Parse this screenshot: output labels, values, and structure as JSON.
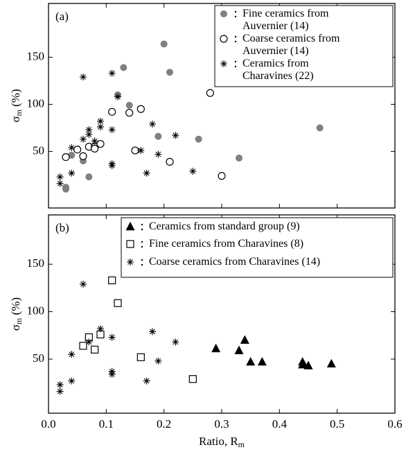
{
  "chart_data": [
    {
      "type": "scatter",
      "panel_label": "(a)",
      "ylabel": [
        "σ",
        "m",
        " (%)"
      ],
      "xlim": [
        0,
        0.6
      ],
      "xticks": [
        0,
        0.1,
        0.2,
        0.3,
        0.4,
        0.5,
        0.6
      ],
      "ylim": [
        -10,
        207
      ],
      "yticks": [
        50,
        100,
        150
      ],
      "series": [
        {
          "name": "Fine ceramics from Auvernier (14)",
          "marker": "circle-filled",
          "color": "#808080",
          "x": [
            0.03,
            0.03,
            0.04,
            0.06,
            0.07,
            0.12,
            0.13,
            0.14,
            0.19,
            0.2,
            0.21,
            0.26,
            0.33,
            0.47
          ],
          "values": [
            12,
            10,
            46,
            40,
            23,
            110,
            139,
            99,
            66,
            164,
            134,
            63,
            43,
            75
          ]
        },
        {
          "name": "Coarse ceramics from Auvernier (14)",
          "marker": "circle-open",
          "color": "#000000",
          "x": [
            0.03,
            0.05,
            0.06,
            0.07,
            0.08,
            0.08,
            0.09,
            0.11,
            0.14,
            0.16,
            0.15,
            0.21,
            0.28,
            0.3
          ],
          "values": [
            44,
            52,
            45,
            55,
            55,
            53,
            58,
            92,
            91,
            95,
            51,
            39,
            112,
            24
          ]
        },
        {
          "name": "Ceramics from Charavines (22)",
          "marker": "star",
          "color": "#000000",
          "x": [
            0.02,
            0.02,
            0.04,
            0.04,
            0.06,
            0.06,
            0.07,
            0.07,
            0.08,
            0.09,
            0.09,
            0.11,
            0.11,
            0.11,
            0.11,
            0.12,
            0.16,
            0.17,
            0.18,
            0.19,
            0.22,
            0.25
          ],
          "values": [
            23,
            16,
            27,
            54,
            129,
            63,
            73,
            68,
            61,
            82,
            76,
            133,
            73,
            37,
            35,
            108,
            51,
            27,
            79,
            47,
            67,
            29
          ]
        }
      ]
    },
    {
      "type": "scatter",
      "panel_label": "(b)",
      "ylabel": [
        "σ",
        "m",
        " (%)"
      ],
      "xlabel": [
        "Ratio, R",
        "m"
      ],
      "xlim": [
        0,
        0.6
      ],
      "xticks": [
        {
          "value": 0,
          "label": "0.0"
        },
        0.1,
        0.2,
        0.3,
        0.4,
        0.5,
        0.6
      ],
      "ylim": [
        -7,
        202
      ],
      "yticks": [
        50,
        100,
        150
      ],
      "series": [
        {
          "name": "Ceramics from standard group (9)",
          "marker": "triangle",
          "color": "#000000",
          "x": [
            0.29,
            0.33,
            0.34,
            0.35,
            0.37,
            0.44,
            0.44,
            0.45,
            0.49
          ],
          "values": [
            61,
            59,
            70,
            47,
            47,
            47,
            44,
            43,
            45
          ]
        },
        {
          "name": "Fine ceramics from Charavines (8)",
          "marker": "square-open",
          "color": "#000000",
          "x": [
            0.06,
            0.07,
            0.08,
            0.09,
            0.11,
            0.12,
            0.16,
            0.25
          ],
          "values": [
            64,
            73,
            60,
            76,
            133,
            109,
            52,
            29
          ]
        },
        {
          "name": "Coarse ceramics from Charavines (14)",
          "marker": "star",
          "color": "#000000",
          "x": [
            0.02,
            0.02,
            0.04,
            0.04,
            0.06,
            0.07,
            0.09,
            0.11,
            0.11,
            0.11,
            0.17,
            0.18,
            0.19,
            0.22
          ],
          "values": [
            23,
            16,
            27,
            55,
            129,
            68,
            82,
            73,
            37,
            34,
            27,
            79,
            48,
            68
          ]
        }
      ]
    }
  ]
}
